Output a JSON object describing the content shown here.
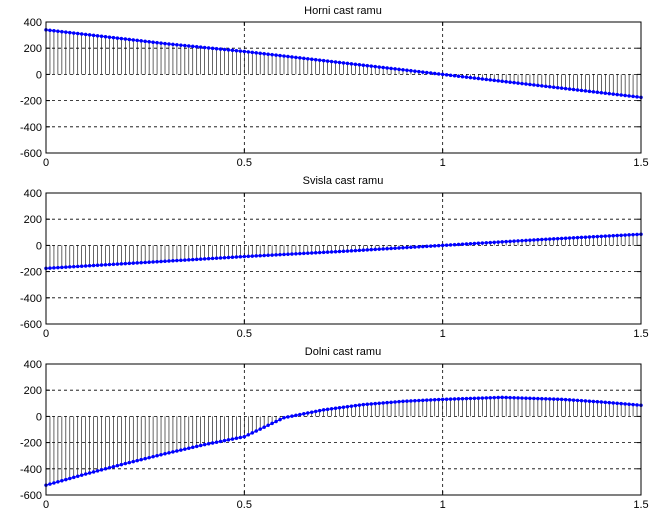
{
  "colors": {
    "data": "#0000ff",
    "axes": "#000000",
    "grid": "#000000",
    "background": "#ffffff"
  },
  "chart_data": [
    {
      "type": "line",
      "style": "stem",
      "title": "Horni cast ramu",
      "xlim": [
        0,
        1.5
      ],
      "ylim": [
        -600,
        400
      ],
      "xticks": [
        0,
        0.5,
        1,
        1.5
      ],
      "xtick_labels": [
        "0",
        "0.5",
        "1",
        "1.5"
      ],
      "yticks": [
        400,
        200,
        0,
        -200,
        -400,
        -600
      ],
      "ytick_labels": [
        "400",
        "200",
        "0",
        "-200",
        "-400",
        "-600"
      ],
      "grid": true,
      "series": [
        {
          "x": [
            0,
            0.1,
            0.2,
            0.3,
            0.4,
            0.5,
            0.6,
            0.7,
            0.8,
            0.9,
            1.0,
            1.1,
            1.2,
            1.3,
            1.4,
            1.5
          ],
          "y": [
            340,
            305,
            270,
            235,
            205,
            175,
            140,
            105,
            70,
            35,
            0,
            -35,
            -70,
            -105,
            -140,
            -175
          ]
        }
      ]
    },
    {
      "type": "line",
      "style": "stem",
      "title": "Svisla cast ramu",
      "xlim": [
        0,
        1.5
      ],
      "ylim": [
        -600,
        400
      ],
      "xticks": [
        0,
        0.5,
        1,
        1.5
      ],
      "xtick_labels": [
        "0",
        "0.5",
        "1",
        "1.5"
      ],
      "yticks": [
        400,
        200,
        0,
        -200,
        -400,
        -600
      ],
      "ytick_labels": [
        "400",
        "200",
        "0",
        "-200",
        "-400",
        "-600"
      ],
      "grid": true,
      "series": [
        {
          "x": [
            0,
            0.25,
            0.5,
            0.75,
            1.0,
            1.25,
            1.5
          ],
          "y": [
            -175,
            -130,
            -85,
            -45,
            0,
            45,
            85
          ]
        }
      ]
    },
    {
      "type": "line",
      "style": "stem",
      "title": "Dolni cast ramu",
      "xlim": [
        0,
        1.5
      ],
      "ylim": [
        -600,
        400
      ],
      "xticks": [
        0,
        0.5,
        1,
        1.5
      ],
      "xtick_labels": [
        "0",
        "0.5",
        "1",
        "1.5"
      ],
      "yticks": [
        400,
        200,
        0,
        -200,
        -400,
        -600
      ],
      "ytick_labels": [
        "400",
        "200",
        "0",
        "-200",
        "-400",
        "-600"
      ],
      "grid": true,
      "series": [
        {
          "x": [
            0,
            0.1,
            0.2,
            0.3,
            0.4,
            0.5,
            0.6,
            0.7,
            0.8,
            0.9,
            1.0,
            1.1,
            1.15,
            1.2,
            1.3,
            1.4,
            1.5
          ],
          "y": [
            -525,
            -440,
            -360,
            -285,
            -215,
            -155,
            -10,
            50,
            90,
            115,
            130,
            140,
            145,
            140,
            130,
            110,
            85
          ]
        }
      ]
    }
  ]
}
